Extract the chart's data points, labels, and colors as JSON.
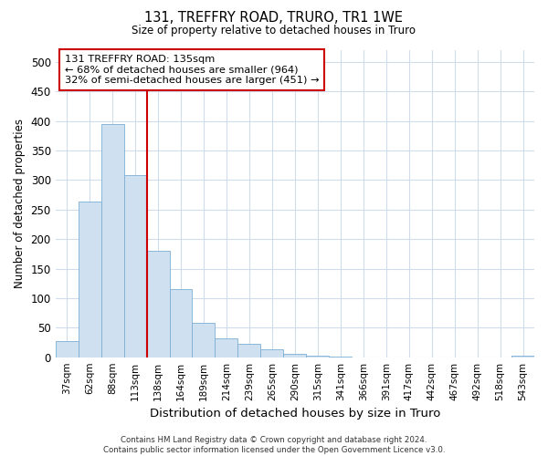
{
  "title": "131, TREFFRY ROAD, TRURO, TR1 1WE",
  "subtitle": "Size of property relative to detached houses in Truro",
  "xlabel": "Distribution of detached houses by size in Truro",
  "ylabel": "Number of detached properties",
  "bar_color": "#cfe0f0",
  "bar_edge_color": "#7baed4",
  "background_color": "#ffffff",
  "plot_bg_color": "#ffffff",
  "grid_color": "#d0dceb",
  "categories": [
    "37sqm",
    "62sqm",
    "88sqm",
    "113sqm",
    "138sqm",
    "164sqm",
    "189sqm",
    "214sqm",
    "239sqm",
    "265sqm",
    "290sqm",
    "315sqm",
    "341sqm",
    "366sqm",
    "391sqm",
    "417sqm",
    "442sqm",
    "467sqm",
    "492sqm",
    "518sqm",
    "543sqm"
  ],
  "values": [
    28,
    263,
    395,
    308,
    180,
    115,
    58,
    32,
    23,
    13,
    6,
    3,
    1,
    0,
    0,
    0,
    0,
    0,
    0,
    0,
    3
  ],
  "ylim": [
    0,
    520
  ],
  "yticks": [
    0,
    50,
    100,
    150,
    200,
    250,
    300,
    350,
    400,
    450,
    500
  ],
  "vline_x": 3.5,
  "annotation_line1": "131 TREFFRY ROAD: 135sqm",
  "annotation_line2": "← 68% of detached houses are smaller (964)",
  "annotation_line3": "32% of semi-detached houses are larger (451) →",
  "annotation_box_color": "white",
  "annotation_edge_color": "#cc0000",
  "vline_color": "#cc0000",
  "footer": "Contains HM Land Registry data © Crown copyright and database right 2024.\nContains public sector information licensed under the Open Government Licence v3.0."
}
